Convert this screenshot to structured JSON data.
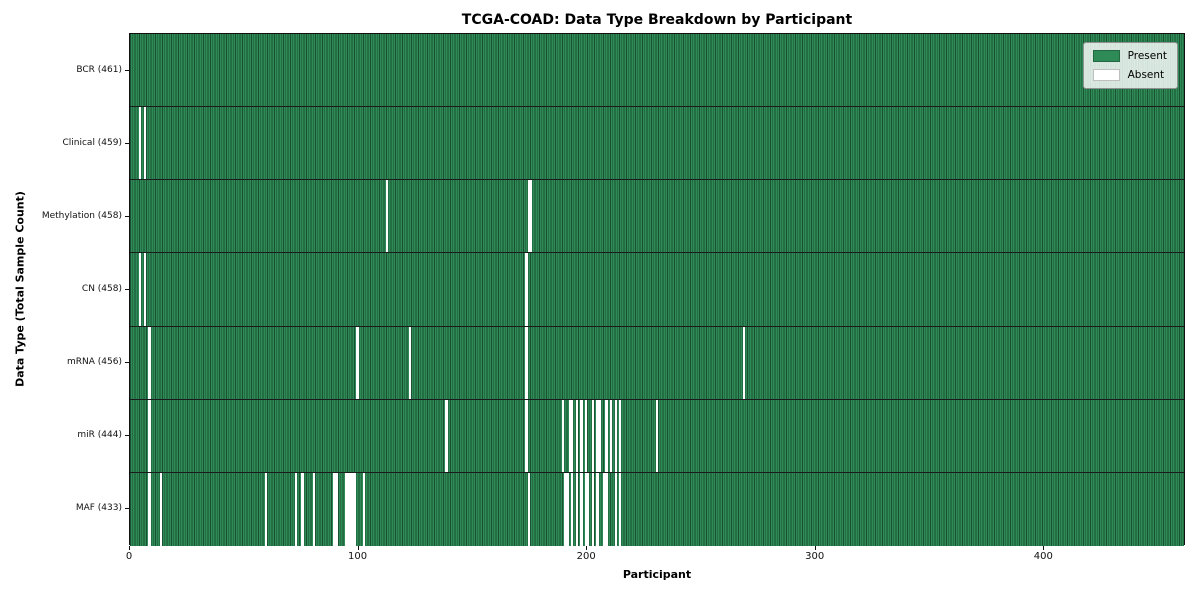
{
  "figure": {
    "title": "TCGA-COAD: Data Type Breakdown by Participant",
    "xlabel": "Participant",
    "ylabel": "Data Type (Total Sample Count)"
  },
  "legend": {
    "items": [
      {
        "label": "Present",
        "color": "#2e8b57"
      },
      {
        "label": "Absent",
        "color": "#ffffff"
      }
    ]
  },
  "axes": {
    "x_ticks": [
      0,
      100,
      200,
      300,
      400
    ],
    "x_axis_max": 462
  },
  "chart_data": {
    "type": "heatmap",
    "title": "TCGA-COAD: Data Type Breakdown by Participant",
    "xlabel": "Participant",
    "ylabel": "Data Type (Total Sample Count)",
    "legend_entries": [
      "Present",
      "Absent"
    ],
    "present_color": "#2e8b57",
    "absent_color": "#ffffff",
    "n_participants": 461,
    "x_tick_values": [
      0,
      100,
      200,
      300,
      400
    ],
    "rows": [
      {
        "label": "BCR (461)",
        "data_type": "BCR",
        "total_sample_count": 461,
        "absent_participants": []
      },
      {
        "label": "Clinical (459)",
        "data_type": "Clinical",
        "total_sample_count": 459,
        "absent_participants": [
          4,
          6
        ]
      },
      {
        "label": "Methylation (458)",
        "data_type": "Methylation",
        "total_sample_count": 458,
        "absent_participants": [
          112,
          174,
          175
        ]
      },
      {
        "label": "CN (458)",
        "data_type": "CN",
        "total_sample_count": 458,
        "absent_participants": [
          4,
          6,
          173
        ]
      },
      {
        "label": "mRNA (456)",
        "data_type": "mRNA",
        "total_sample_count": 456,
        "absent_participants": [
          8,
          99,
          122,
          173,
          268
        ]
      },
      {
        "label": "miR (444)",
        "data_type": "miR",
        "total_sample_count": 444,
        "absent_participants": [
          8,
          138,
          173,
          189,
          192,
          193,
          195,
          197,
          199,
          202,
          204,
          205,
          208,
          210,
          212,
          214,
          230
        ]
      },
      {
        "label": "MAF (433)",
        "data_type": "MAF",
        "total_sample_count": 433,
        "absent_participants": [
          8,
          13,
          59,
          72,
          75,
          80,
          89,
          90,
          94,
          95,
          96,
          97,
          98,
          102,
          174,
          190,
          191,
          193,
          195,
          197,
          199,
          200,
          202,
          204,
          207,
          208,
          212,
          214
        ]
      }
    ]
  }
}
